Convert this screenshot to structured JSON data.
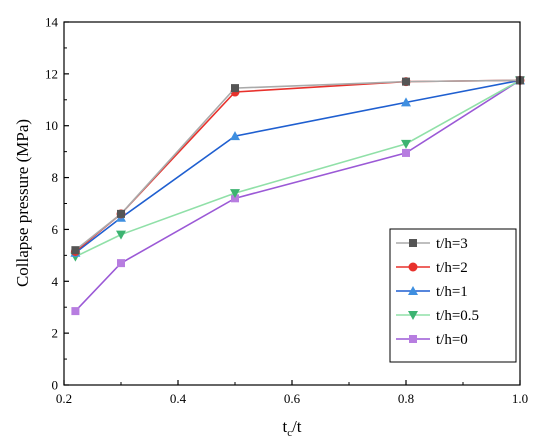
{
  "chart_data": {
    "type": "line",
    "xlabel_main": "t",
    "xlabel_sub": "c",
    "xlabel_tail": "/t",
    "ylabel": "Collapse pressure (MPa)",
    "xlim": [
      0.2,
      1.0
    ],
    "ylim": [
      0,
      14
    ],
    "xticks": [
      0.2,
      0.4,
      0.6,
      0.8,
      1.0
    ],
    "xtick_labels": [
      "0.2",
      "0.4",
      "0.6",
      "0.8",
      "1.0"
    ],
    "yticks": [
      0,
      2,
      4,
      6,
      8,
      10,
      12,
      14
    ],
    "ytick_labels": [
      "0",
      "2",
      "4",
      "6",
      "8",
      "10",
      "12",
      "14"
    ],
    "grid": false,
    "legend_position": "bottom-right",
    "x": [
      0.22,
      0.3,
      0.5,
      0.8,
      1.0
    ],
    "series": [
      {
        "name": "t/h=3",
        "values": [
          5.2,
          6.6,
          11.45,
          11.7,
          11.75
        ],
        "color": "#555555",
        "line_color": "#aaaaaa",
        "marker": "square"
      },
      {
        "name": "t/h=2",
        "values": [
          5.15,
          6.6,
          11.3,
          11.7,
          11.75
        ],
        "color": "#e8312c",
        "line_color": "#e8312c",
        "marker": "circle"
      },
      {
        "name": "t/h=1",
        "values": [
          5.1,
          6.45,
          9.6,
          10.9,
          11.75
        ],
        "color": "#3f8fe0",
        "line_color": "#1f5fd0",
        "marker": "triangle-up"
      },
      {
        "name": "t/h=0.5",
        "values": [
          4.95,
          5.8,
          7.4,
          9.3,
          11.75
        ],
        "color": "#3cb371",
        "line_color": "#90e0a8",
        "marker": "triangle-down"
      },
      {
        "name": "t/h=0",
        "values": [
          2.85,
          4.7,
          7.2,
          8.95,
          11.75
        ],
        "color": "#b77de0",
        "line_color": "#9b59d6",
        "marker": "square"
      }
    ]
  }
}
